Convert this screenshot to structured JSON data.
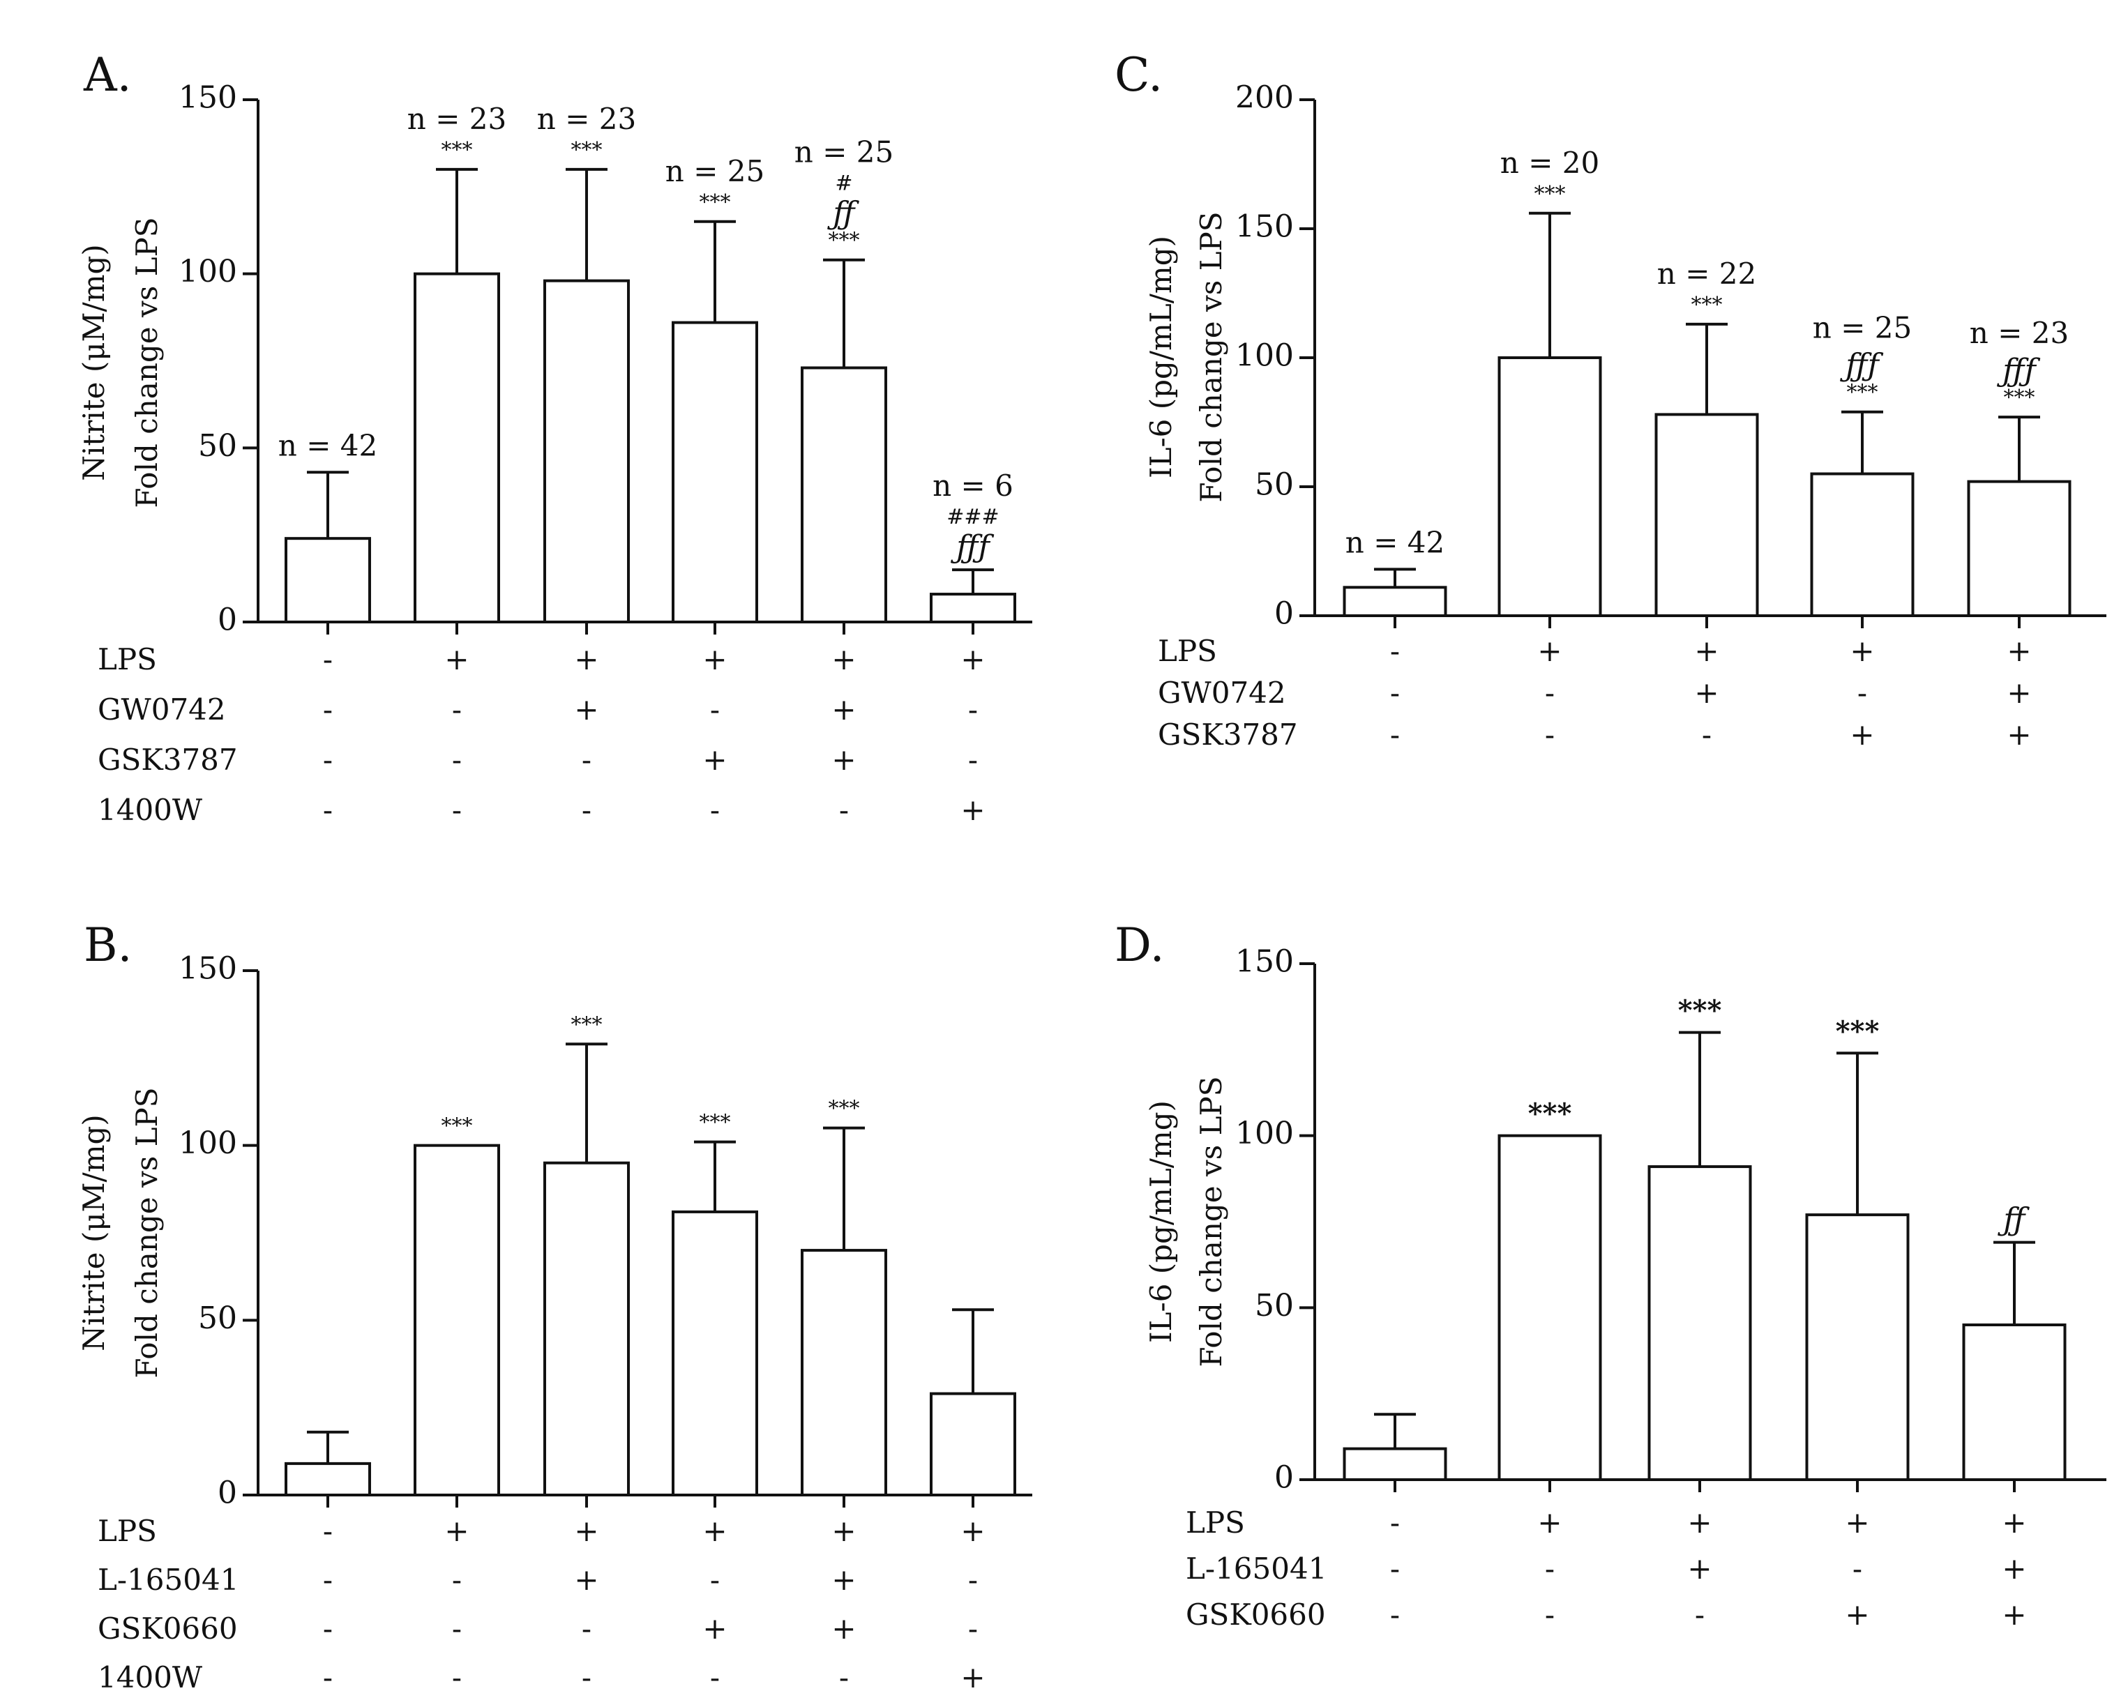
{
  "chart_data": [
    {
      "panel": "A.",
      "type": "bar",
      "ylabel_lines": [
        "Nitrite (μM/mg)",
        "Fold change vs LPS"
      ],
      "ylim": [
        0,
        150
      ],
      "yticks": [
        0,
        50,
        100,
        150
      ],
      "values": [
        24,
        100,
        98,
        86,
        73,
        8
      ],
      "errors": [
        19,
        30,
        32,
        29,
        31,
        7
      ],
      "n_labels": [
        "n = 42",
        "n = 23",
        "n = 23",
        "n = 25",
        "n = 25",
        "n = 6"
      ],
      "sig_labels": [
        [],
        [
          {
            "text": "***",
            "style": "small"
          }
        ],
        [
          {
            "text": "***",
            "style": "small"
          }
        ],
        [
          {
            "text": "***",
            "style": "small"
          }
        ],
        [
          {
            "text": "***",
            "style": "small"
          },
          {
            "text": "ƒƒ",
            "style": "italic"
          },
          {
            "text": "#",
            "style": "small"
          }
        ],
        [
          {
            "text": "ƒƒƒ",
            "style": "italic"
          },
          {
            "text": "###",
            "style": "small"
          }
        ]
      ],
      "treatments": [
        {
          "name": "LPS",
          "signs": [
            "-",
            "+",
            "+",
            "+",
            "+",
            "+"
          ]
        },
        {
          "name": "GW0742",
          "signs": [
            "-",
            "-",
            "+",
            "-",
            "+",
            "-"
          ]
        },
        {
          "name": "GSK3787",
          "signs": [
            "-",
            "-",
            "-",
            "+",
            "+",
            "-"
          ]
        },
        {
          "name": "1400W",
          "signs": [
            "-",
            "-",
            "-",
            "-",
            "-",
            "+"
          ]
        }
      ]
    },
    {
      "panel": "B.",
      "type": "bar",
      "ylabel_lines": [
        "Nitrite (μM/mg)",
        "Fold change vs LPS"
      ],
      "ylim": [
        0,
        150
      ],
      "yticks": [
        0,
        50,
        100,
        150
      ],
      "values": [
        9,
        100,
        95,
        81,
        70,
        29
      ],
      "errors": [
        9,
        0,
        34,
        20,
        35,
        24
      ],
      "n_labels": [],
      "sig_labels": [
        [],
        [
          {
            "text": "***",
            "style": "small"
          }
        ],
        [
          {
            "text": "***",
            "style": "small"
          }
        ],
        [
          {
            "text": "***",
            "style": "small"
          }
        ],
        [
          {
            "text": "***",
            "style": "small"
          }
        ],
        []
      ],
      "treatments": [
        {
          "name": "LPS",
          "signs": [
            "-",
            "+",
            "+",
            "+",
            "+",
            "+"
          ]
        },
        {
          "name": "L-165041",
          "signs": [
            "-",
            "-",
            "+",
            "-",
            "+",
            "-"
          ]
        },
        {
          "name": "GSK0660",
          "signs": [
            "-",
            "-",
            "-",
            "+",
            "+",
            "-"
          ]
        },
        {
          "name": "1400W",
          "signs": [
            "-",
            "-",
            "-",
            "-",
            "-",
            "+"
          ]
        }
      ]
    },
    {
      "panel": "C.",
      "type": "bar",
      "ylabel_lines": [
        "IL-6 (pg/mL/mg)",
        "Fold change vs LPS"
      ],
      "ylim": [
        0,
        200
      ],
      "yticks": [
        0,
        50,
        100,
        150,
        200
      ],
      "values": [
        11,
        100,
        78,
        55,
        52
      ],
      "errors": [
        7,
        56,
        35,
        24,
        25
      ],
      "n_labels": [
        "n = 42",
        "n = 20",
        "n = 22",
        "n = 25",
        "n = 23"
      ],
      "sig_labels": [
        [],
        [
          {
            "text": "***",
            "style": "small"
          }
        ],
        [
          {
            "text": "***",
            "style": "small"
          }
        ],
        [
          {
            "text": "***",
            "style": "small"
          },
          {
            "text": "ƒƒƒ",
            "style": "italic"
          }
        ],
        [
          {
            "text": "***",
            "style": "small"
          },
          {
            "text": "ƒƒƒ",
            "style": "italic"
          }
        ]
      ],
      "treatments": [
        {
          "name": "LPS",
          "signs": [
            "-",
            "+",
            "+",
            "+",
            "+"
          ]
        },
        {
          "name": "GW0742",
          "signs": [
            "-",
            "-",
            "+",
            "-",
            "+"
          ]
        },
        {
          "name": "GSK3787",
          "signs": [
            "-",
            "-",
            "-",
            "+",
            "+"
          ]
        }
      ]
    },
    {
      "panel": "D.",
      "type": "bar",
      "ylabel_lines": [
        "IL-6 (pg/mL/mg)",
        "Fold change vs LPS"
      ],
      "ylim": [
        0,
        150
      ],
      "yticks": [
        0,
        50,
        100,
        150
      ],
      "values": [
        9,
        100,
        91,
        77,
        45
      ],
      "errors": [
        10,
        0,
        39,
        47,
        24
      ],
      "n_labels": [],
      "sig_labels": [
        [],
        [
          {
            "text": "***",
            "style": "large"
          }
        ],
        [
          {
            "text": "***",
            "style": "large"
          }
        ],
        [
          {
            "text": "***",
            "style": "large"
          }
        ],
        [
          {
            "text": "ƒƒ",
            "style": "italic"
          }
        ]
      ],
      "treatments": [
        {
          "name": "LPS",
          "signs": [
            "-",
            "+",
            "+",
            "+",
            "+"
          ]
        },
        {
          "name": "L-165041",
          "signs": [
            "-",
            "-",
            "+",
            "-",
            "+"
          ]
        },
        {
          "name": "GSK0660",
          "signs": [
            "-",
            "-",
            "-",
            "+",
            "+"
          ]
        }
      ]
    }
  ]
}
